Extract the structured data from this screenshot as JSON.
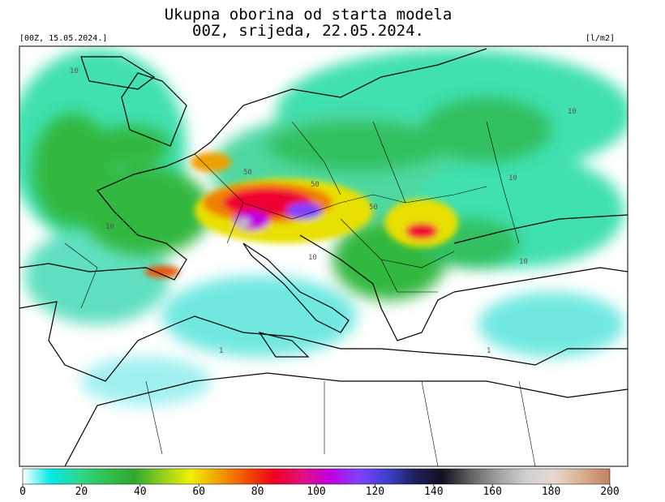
{
  "header": {
    "title": "Ukupna oborina od starta modela",
    "subtitle": "00Z, srijeda, 22.05.2024.",
    "run": "[00Z, 15.05.2024.]",
    "unit": "[l/m2]"
  },
  "colorbar": {
    "range": [
      0,
      200
    ],
    "ticks": [
      0,
      20,
      40,
      60,
      80,
      100,
      120,
      140,
      160,
      180,
      200
    ],
    "colors": [
      "#ffffff",
      "#00e8e8",
      "#30d890",
      "#30c050",
      "#30a830",
      "#90d020",
      "#f0f000",
      "#f0a000",
      "#f05000",
      "#f00020",
      "#e0107f",
      "#c000e0",
      "#8040ff",
      "#4040d0",
      "#202060",
      "#101020",
      "#606060",
      "#a0a0a0",
      "#d0d0d0",
      "#e8d8d0",
      "#d8b090",
      "#c08060"
    ]
  },
  "contour_labels": [
    "10",
    "10",
    "10",
    "50",
    "50",
    "50",
    "10",
    "1",
    "1",
    "10",
    "10"
  ]
}
